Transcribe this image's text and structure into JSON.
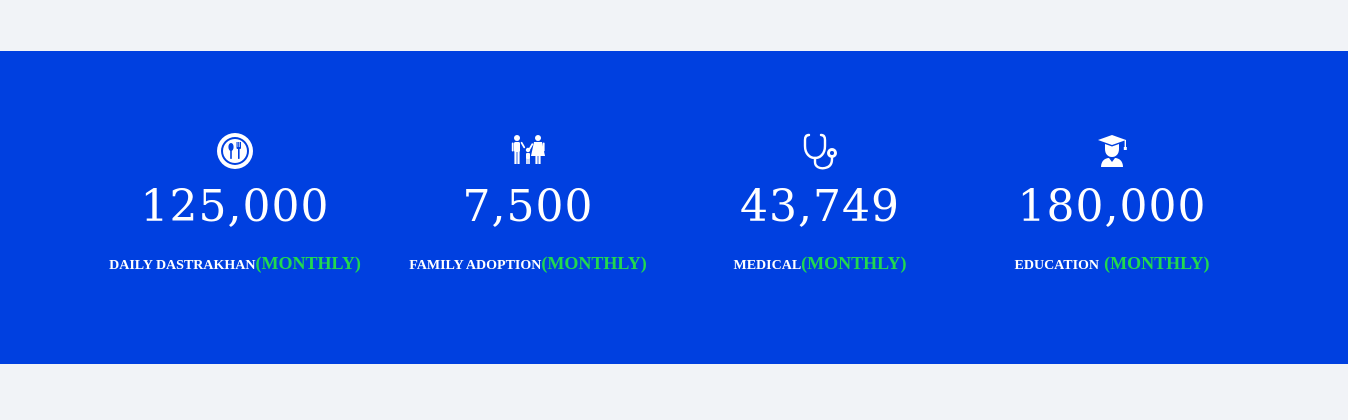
{
  "colors": {
    "page_background": "#f1f3f7",
    "band_background": "#0040e0",
    "text": "#ffffff",
    "accent_green": "#21d94e"
  },
  "stats": [
    {
      "icon": "food-plate-icon",
      "value": "125,000",
      "label": "DAILY DASTRAKHAN",
      "separator": "",
      "frequency": "(MONTHLY)"
    },
    {
      "icon": "family-icon",
      "value": "7,500",
      "label": "FAMILY ADOPTION",
      "separator": "",
      "frequency": "(MONTHLY)"
    },
    {
      "icon": "stethoscope-icon",
      "value": "43,749",
      "label": "MEDICAL",
      "separator": "",
      "frequency": "(MONTHLY)"
    },
    {
      "icon": "graduate-icon",
      "value": "180,000",
      "label": "EDUCATION",
      "separator": " ",
      "frequency": "(MONTHLY)"
    }
  ]
}
